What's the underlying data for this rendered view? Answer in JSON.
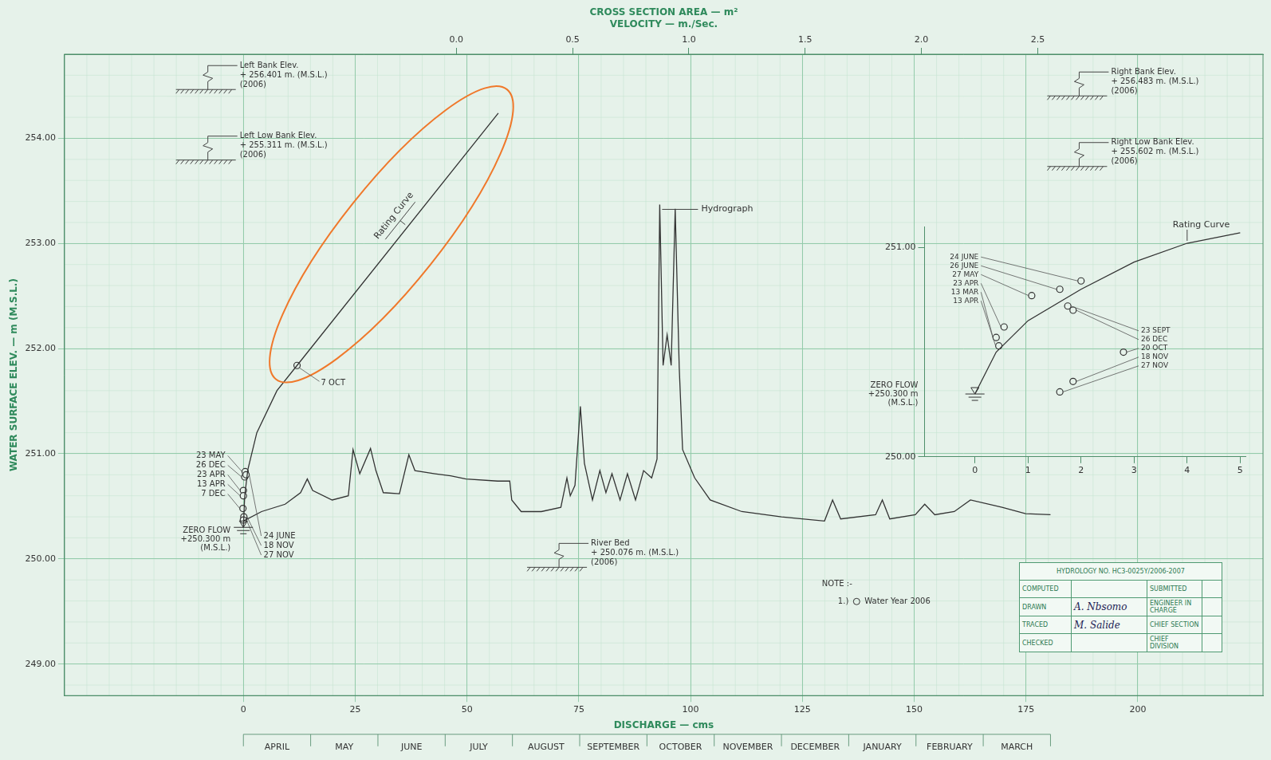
{
  "chart_data": [
    {
      "type": "line",
      "x_label": "DISCHARGE — cms",
      "y_label": "WATER SURFACE ELEV. — m (M.S.L.)",
      "x2_label": [
        "CROSS SECTION AREA — m²",
        "VELOCITY — m./Sec."
      ],
      "xlim": [
        -40,
        228
      ],
      "xticks": [
        0,
        25,
        50,
        75,
        100,
        125,
        150,
        175,
        200
      ],
      "x2lim": [
        -1.685,
        3.469
      ],
      "x2ticks": [
        {
          "value": 0,
          "label": "0.0"
        },
        0.5,
        {
          "value": 1,
          "label": "1.0"
        },
        1.5,
        {
          "value": 2,
          "label": "2.0"
        },
        2.5
      ],
      "x3lim": [
        -2.66,
        15.16
      ],
      "x3ticks": [
        {
          "value": 0.5,
          "label": "APRIL"
        },
        {
          "value": 1.5,
          "label": "MAY"
        },
        {
          "value": 2.5,
          "label": "JUNE"
        },
        {
          "value": 3.5,
          "label": "JULY"
        },
        {
          "value": 4.5,
          "label": "AUGUST"
        },
        {
          "value": 5.5,
          "label": "SEPTEMBER"
        },
        {
          "value": 6.5,
          "label": "OCTOBER"
        },
        {
          "value": 7.5,
          "label": "NOVEMBER"
        },
        {
          "value": 8.5,
          "label": "DECEMBER"
        },
        {
          "value": 9.5,
          "label": "JANUARY"
        },
        {
          "value": 10.5,
          "label": "FEBRUARY"
        },
        {
          "value": 11.5,
          "label": "MARCH"
        }
      ],
      "ylim": [
        248.7,
        254.8
      ],
      "yticks": [
        {
          "value": 249,
          "label": "249.00"
        },
        {
          "value": 250,
          "label": "250.00"
        },
        {
          "value": 251,
          "label": "251.00"
        },
        {
          "value": 252,
          "label": "252.00"
        },
        {
          "value": 253,
          "label": "253.00"
        },
        {
          "value": 254,
          "label": "254.00"
        }
      ],
      "grid": true,
      "series": [
        {
          "name": "Rating Curve",
          "type": "line",
          "color": "#333333",
          "line_style": "solid",
          "marker": "none",
          "x": [
            0,
            0.3,
            1,
            3,
            7.5,
            12,
            57
          ],
          "values": [
            250.3,
            250.6,
            250.85,
            251.2,
            251.6,
            251.84,
            254.24
          ]
        },
        {
          "name": "Hydrograph",
          "type": "line",
          "axis": "x3",
          "color": "#333333",
          "line_style": "solid",
          "marker": "none",
          "x": [
            0.0,
            0.27,
            0.62,
            0.85,
            0.95,
            1.03,
            1.32,
            1.56,
            1.63,
            1.73,
            1.89,
            1.97,
            2.08,
            2.32,
            2.46,
            2.55,
            2.85,
            3.08,
            3.31,
            3.78,
            3.96,
            3.99,
            4.13,
            4.43,
            4.72,
            4.81,
            4.86,
            4.93,
            5.01,
            5.07,
            5.19,
            5.3,
            5.39,
            5.48,
            5.6,
            5.71,
            5.83,
            5.95,
            6.07,
            6.15,
            6.19,
            6.24,
            6.3,
            6.36,
            6.42,
            6.48,
            6.53,
            6.71,
            6.94,
            7.41,
            8.0,
            8.64,
            8.76,
            8.88,
            9.4,
            9.5,
            9.61,
            9.99,
            10.13,
            10.28,
            10.57,
            10.81,
            11.28,
            11.63,
            12.0
          ],
          "values": [
            250.36,
            250.45,
            250.52,
            250.63,
            250.76,
            250.65,
            250.56,
            250.6,
            251.04,
            250.81,
            251.05,
            250.84,
            250.63,
            250.62,
            250.99,
            250.84,
            250.81,
            250.79,
            250.76,
            250.74,
            250.74,
            250.56,
            250.45,
            250.45,
            250.49,
            250.77,
            250.6,
            250.7,
            251.45,
            250.91,
            250.56,
            250.84,
            250.63,
            250.81,
            250.56,
            250.81,
            250.56,
            250.84,
            250.77,
            250.95,
            253.37,
            251.84,
            252.13,
            251.84,
            253.33,
            251.82,
            251.04,
            250.77,
            250.56,
            250.45,
            250.4,
            250.36,
            250.56,
            250.38,
            250.42,
            250.56,
            250.38,
            250.42,
            250.52,
            250.42,
            250.45,
            250.56,
            250.49,
            250.43,
            250.42
          ]
        },
        {
          "type": "scatter",
          "color": "#333333",
          "marker": "circle",
          "x": [
            0.4,
            0.3,
            0,
            0,
            -0.1,
            0.6,
            0.1,
            0,
            12
          ],
          "values": [
            250.83,
            250.78,
            250.65,
            250.6,
            250.48,
            250.8,
            250.4,
            250.37,
            251.84
          ],
          "labels": [
            "23 MAY",
            "26 DEC",
            "23 APR",
            "13 APR",
            "7 DEC",
            "24 JUNE",
            "18 NOV",
            "27 NOV",
            "7 OCT"
          ]
        }
      ],
      "annotations": {
        "left_bank": [
          "Left Bank Elev.",
          "+ 256.401 m. (M.S.L.)",
          "(2006)"
        ],
        "left_low_bank": [
          "Left Low Bank Elev.",
          "+ 255.311 m. (M.S.L.)",
          "(2006)"
        ],
        "right_bank": [
          "Right Bank Elev.",
          "+ 256.483 m. (M.S.L.)",
          "(2006)"
        ],
        "right_low_bank": [
          "Right Low Bank Elev.",
          "+ 255.602 m. (M.S.L.)",
          "(2006)"
        ],
        "river_bed": [
          "River Bed",
          "+ 250.076 m. (M.S.L.)",
          "(2006)"
        ],
        "zero_flow": [
          "ZERO FLOW",
          "+250.300 m",
          "(M.S.L.)"
        ]
      }
    },
    {
      "type": "line",
      "xlim": [
        -0.95,
        5.1
      ],
      "xticks": [
        0,
        1,
        2,
        3,
        4,
        5
      ],
      "ylim": [
        250,
        251.1
      ],
      "yticks": [
        {
          "value": 250,
          "label": "250.00"
        },
        {
          "value": 251,
          "label": "251.00"
        }
      ],
      "grid": false,
      "series": [
        {
          "name": "Rating Curve",
          "type": "line",
          "color": "#333333",
          "line_style": "solid",
          "marker": "none",
          "x": [
            0,
            0.4,
            1,
            2,
            3,
            4,
            5
          ],
          "values": [
            250.3,
            250.5,
            250.65,
            250.8,
            250.93,
            251.02,
            251.07
          ]
        },
        {
          "type": "scatter",
          "color": "#333333",
          "marker": "circle",
          "x": [
            2.0,
            1.6,
            1.07,
            0.55,
            0.4,
            0.45,
            1.75,
            1.85,
            2.8,
            1.85,
            1.6
          ],
          "values": [
            250.84,
            250.8,
            250.77,
            250.62,
            250.57,
            250.53,
            250.72,
            250.7,
            250.5,
            250.36,
            250.31
          ],
          "labels": [
            "24 JUNE",
            "26 JUNE",
            "27 MAY",
            "23 APR",
            "13 MAR",
            "13 APR",
            "23 SEPT",
            "26 DEC",
            "20 OCT",
            "18 NOV",
            "27 NOV"
          ]
        }
      ],
      "annotations": {
        "zero_flow": [
          "ZERO FLOW",
          "+250.300 m",
          "(M.S.L.)"
        ]
      }
    }
  ],
  "note": {
    "heading": "NOTE :-",
    "items": [
      {
        "number": "1.)",
        "text": "Water Year 2006"
      }
    ]
  },
  "title_block": {
    "number": "HYDROLOGY NO. HC3-0025Y/2006-2007",
    "rows": [
      {
        "role": "COMPUTED",
        "approval": "SUBMITTED"
      },
      {
        "role": "DRAWN",
        "name": "A. Nbsomo",
        "approval": "ENGINEER IN CHARGE"
      },
      {
        "role": "TRACED",
        "name": "M. Salide",
        "approval": "CHIEF SECTION"
      },
      {
        "role": "CHECKED",
        "approval": "CHIEF DIVISION"
      }
    ]
  }
}
